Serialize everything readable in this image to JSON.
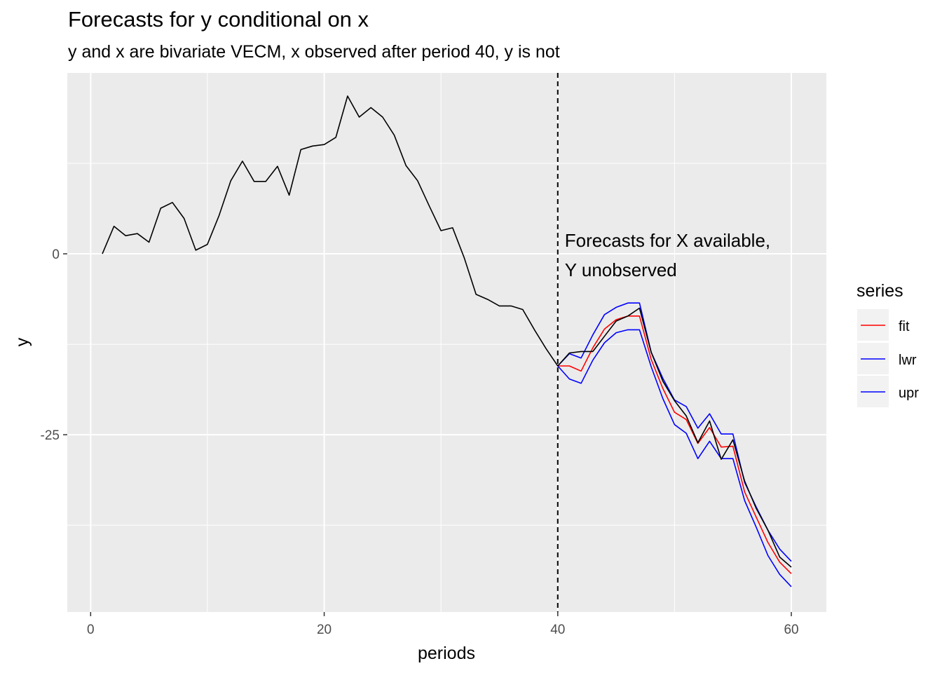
{
  "chart_data": {
    "type": "line",
    "title": "Forecasts for y conditional on x",
    "subtitle": "y and x are bivariate VECM, x observed after period 40, y is not",
    "xlabel": "periods",
    "ylabel": "y",
    "xlim": [
      -2,
      63
    ],
    "ylim": [
      -49.5,
      25
    ],
    "x_ticks": [
      0,
      20,
      40,
      60
    ],
    "x_tick_labels": [
      "0",
      "20",
      "40",
      "60"
    ],
    "y_ticks": [
      0,
      -25
    ],
    "y_tick_labels": [
      "0",
      "-25"
    ],
    "grid": true,
    "legend": {
      "title": "series",
      "position": "right",
      "entries": [
        "fit",
        "lwr",
        "upr"
      ]
    },
    "colors": {
      "y": "#000000",
      "fit": "#ff0000",
      "lwr": "#0000ff",
      "upr": "#0000ff",
      "vline": "#000000",
      "panel_bg": "#ebebeb",
      "grid": "#ffffff"
    },
    "vline": {
      "x": 40,
      "style": "dashed"
    },
    "annotation": {
      "x": 40.6,
      "lines": [
        "Forecasts for X available,",
        "Y unobserved"
      ]
    },
    "series": [
      {
        "key": "y",
        "x": [
          1,
          2,
          3,
          4,
          5,
          6,
          7,
          8,
          9,
          10,
          11,
          12,
          13,
          14,
          15,
          16,
          17,
          18,
          19,
          20,
          21,
          22,
          23,
          24,
          25,
          26,
          27,
          28,
          29,
          30,
          31,
          32,
          33,
          34,
          35,
          36,
          37,
          38,
          39,
          40,
          41,
          42,
          43,
          44,
          45,
          46,
          47,
          48,
          49,
          50,
          51,
          52,
          53,
          54,
          55,
          56,
          57,
          58,
          59,
          60
        ],
        "values": [
          0,
          3.8,
          2.5,
          2.8,
          1.6,
          6.3,
          7.1,
          4.9,
          0.5,
          1.3,
          5.3,
          10.1,
          12.8,
          10.0,
          10.0,
          12.1,
          8.1,
          14.4,
          14.9,
          15.1,
          16.1,
          21.8,
          18.9,
          20.2,
          18.9,
          16.4,
          12.2,
          10.1,
          6.6,
          3.2,
          3.6,
          -0.6,
          -5.6,
          -6.3,
          -7.2,
          -7.2,
          -7.7,
          -10.5,
          -13.1,
          -15.5,
          -13.7,
          -13.5,
          -13.5,
          -11.4,
          -9.3,
          -8.6,
          -7.5,
          -13.6,
          -17.6,
          -20.3,
          -22.4,
          -26.1,
          -23.1,
          -28.4,
          -25.7,
          -31.4,
          -35.2,
          -38.2,
          -41.9,
          -43.3
        ]
      },
      {
        "key": "fit",
        "name": "fit",
        "x": [
          40,
          41,
          42,
          43,
          44,
          45,
          46,
          47,
          48,
          49,
          50,
          51,
          52,
          53,
          54,
          55,
          56,
          57,
          58,
          59,
          60
        ],
        "values": [
          -15.5,
          -15.5,
          -16.2,
          -13.0,
          -10.4,
          -9.1,
          -8.6,
          -8.6,
          -14.6,
          -18.6,
          -21.9,
          -22.9,
          -26.2,
          -24.0,
          -26.7,
          -26.6,
          -32.9,
          -36.4,
          -39.9,
          -42.6,
          -44.2
        ]
      },
      {
        "key": "lwr",
        "name": "lwr",
        "x": [
          40,
          41,
          42,
          43,
          44,
          45,
          46,
          47,
          48,
          49,
          50,
          51,
          52,
          53,
          54,
          55,
          56,
          57,
          58,
          59,
          60
        ],
        "values": [
          -15.5,
          -17.3,
          -17.9,
          -14.7,
          -12.3,
          -10.9,
          -10.5,
          -10.5,
          -15.6,
          -20.0,
          -23.6,
          -24.8,
          -28.3,
          -25.9,
          -28.3,
          -28.3,
          -34.1,
          -37.8,
          -41.7,
          -44.3,
          -46.0
        ]
      },
      {
        "key": "upr",
        "name": "upr",
        "x": [
          40,
          41,
          42,
          43,
          44,
          45,
          46,
          47,
          48,
          49,
          50,
          51,
          52,
          53,
          54,
          55,
          56,
          57,
          58,
          59,
          60
        ],
        "values": [
          -15.5,
          -13.8,
          -14.4,
          -11.2,
          -8.4,
          -7.4,
          -6.8,
          -6.8,
          -13.6,
          -17.2,
          -20.2,
          -21.1,
          -24.1,
          -22.1,
          -24.9,
          -24.9,
          -31.6,
          -35.0,
          -38.2,
          -40.8,
          -42.5
        ]
      }
    ]
  }
}
